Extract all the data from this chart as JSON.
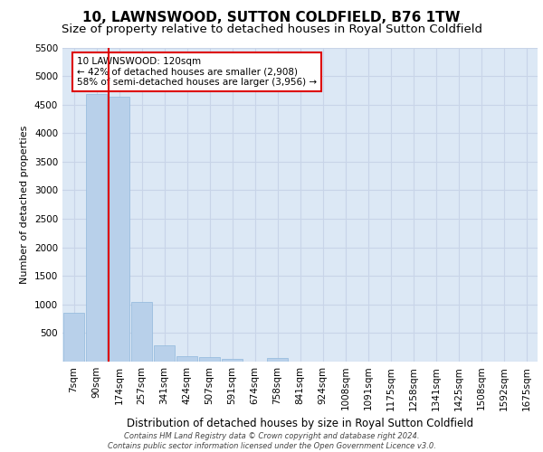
{
  "title": "10, LAWNSWOOD, SUTTON COLDFIELD, B76 1TW",
  "subtitle": "Size of property relative to detached houses in Royal Sutton Coldfield",
  "xlabel": "Distribution of detached houses by size in Royal Sutton Coldfield",
  "ylabel": "Number of detached properties",
  "footer_line1": "Contains HM Land Registry data © Crown copyright and database right 2024.",
  "footer_line2": "Contains public sector information licensed under the Open Government Licence v3.0.",
  "categories": [
    "7sqm",
    "90sqm",
    "174sqm",
    "257sqm",
    "341sqm",
    "424sqm",
    "507sqm",
    "591sqm",
    "674sqm",
    "758sqm",
    "841sqm",
    "924sqm",
    "1008sqm",
    "1091sqm",
    "1175sqm",
    "1258sqm",
    "1341sqm",
    "1425sqm",
    "1508sqm",
    "1592sqm",
    "1675sqm"
  ],
  "values": [
    850,
    4680,
    4640,
    1050,
    285,
    90,
    78,
    55,
    0,
    65,
    0,
    0,
    0,
    0,
    0,
    0,
    0,
    0,
    0,
    0,
    0
  ],
  "bar_color": "#b8d0ea",
  "bar_edge_color": "#90b8dc",
  "property_line_x": 1.55,
  "property_line_color": "#dd0000",
  "annotation_text": "10 LAWNSWOOD: 120sqm\n← 42% of detached houses are smaller (2,908)\n58% of semi-detached houses are larger (3,956) →",
  "annotation_box_facecolor": "#ffffff",
  "annotation_box_edgecolor": "#dd0000",
  "ylim": [
    0,
    5500
  ],
  "yticks": [
    0,
    500,
    1000,
    1500,
    2000,
    2500,
    3000,
    3500,
    4000,
    4500,
    5000,
    5500
  ],
  "grid_color": "#c8d4e8",
  "background_color": "#dce8f5",
  "title_fontsize": 11,
  "subtitle_fontsize": 9.5,
  "xlabel_fontsize": 8.5,
  "ylabel_fontsize": 8,
  "tick_fontsize": 7.5,
  "annot_fontsize": 7.5,
  "footer_fontsize": 6
}
